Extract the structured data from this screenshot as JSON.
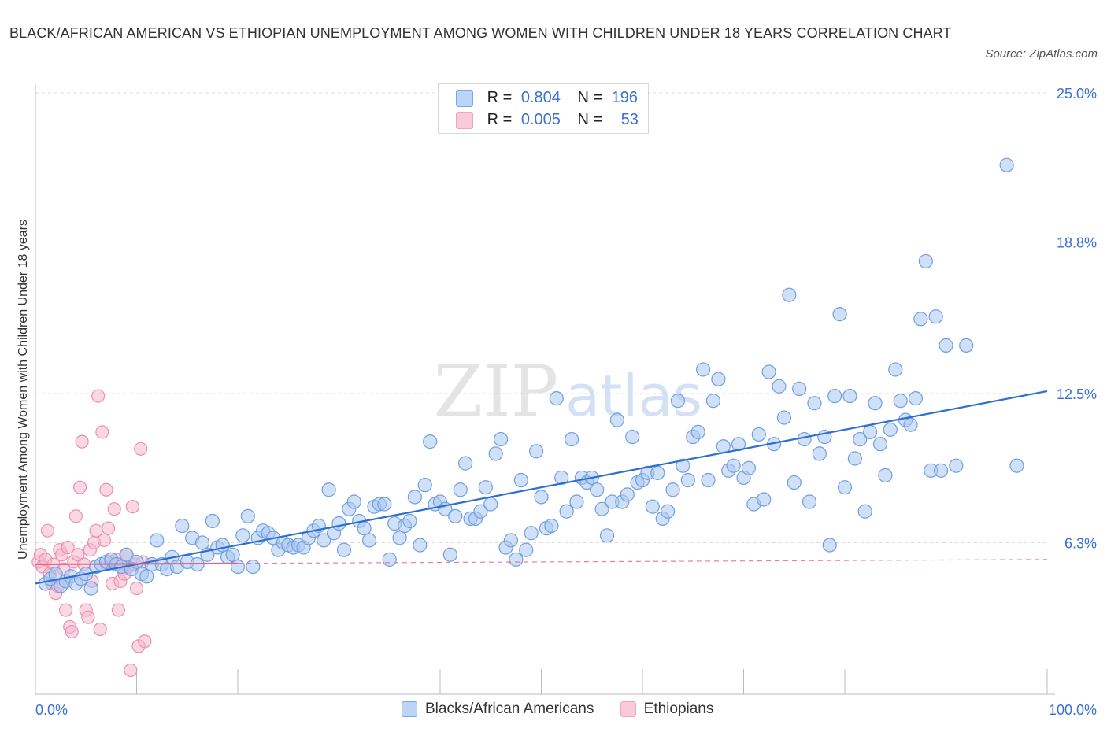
{
  "title": "BLACK/AFRICAN AMERICAN VS ETHIOPIAN UNEMPLOYMENT AMONG WOMEN WITH CHILDREN UNDER 18 YEARS CORRELATION CHART",
  "source": "Source: ZipAtlas.com",
  "watermark": {
    "zip": "ZIP",
    "atlas": "atlas"
  },
  "legend_top": {
    "rows": [
      {
        "r_label": "R =",
        "r_value": "0.804",
        "n_label": "N =",
        "n_value": "196",
        "color": "#a9c6f0"
      },
      {
        "r_label": "R =",
        "r_value": "0.005",
        "n_label": "N =",
        "n_value": "53",
        "color": "#f5b8cc"
      }
    ]
  },
  "chart_data": {
    "type": "scatter",
    "title": "BLACK/AFRICAN AMERICAN VS ETHIOPIAN UNEMPLOYMENT AMONG WOMEN WITH CHILDREN UNDER 18 YEARS CORRELATION CHART",
    "xlabel": "",
    "ylabel": "Unemployment Among Women with Children Under 18 years",
    "xlim": [
      0,
      100
    ],
    "ylim": [
      0,
      25
    ],
    "x_tick_labels": [
      {
        "value": 0,
        "label": "0.0%"
      },
      {
        "value": 100,
        "label": "100.0%"
      }
    ],
    "y_tick_labels": [
      {
        "value": 6.3,
        "label": "6.3%"
      },
      {
        "value": 12.5,
        "label": "12.5%"
      },
      {
        "value": 18.8,
        "label": "18.8%"
      },
      {
        "value": 25.0,
        "label": "25.0%"
      }
    ],
    "grid": true,
    "legend_position": "bottom",
    "series": [
      {
        "name": "Blacks/African Americans",
        "color": "#7aa7e6",
        "trend": {
          "x": [
            0,
            100
          ],
          "y": [
            4.6,
            12.6
          ],
          "color": "#2d6fd0"
        },
        "points": [
          [
            1,
            4.6
          ],
          [
            1.5,
            4.8
          ],
          [
            2,
            5.0
          ],
          [
            2.5,
            4.5
          ],
          [
            3,
            4.7
          ],
          [
            3.5,
            4.9
          ],
          [
            4,
            4.6
          ],
          [
            4.5,
            4.8
          ],
          [
            5,
            5.0
          ],
          [
            5.5,
            4.4
          ],
          [
            6,
            5.3
          ],
          [
            6.5,
            5.4
          ],
          [
            7,
            5.5
          ],
          [
            7.5,
            5.6
          ],
          [
            8,
            5.4
          ],
          [
            8.5,
            5.3
          ],
          [
            9,
            5.8
          ],
          [
            9.5,
            5.2
          ],
          [
            10,
            5.5
          ],
          [
            10.5,
            5.0
          ],
          [
            11,
            4.9
          ],
          [
            11.5,
            5.4
          ],
          [
            12,
            6.4
          ],
          [
            12.5,
            5.4
          ],
          [
            13,
            5.2
          ],
          [
            13.5,
            5.7
          ],
          [
            14,
            5.3
          ],
          [
            14.5,
            7.0
          ],
          [
            15,
            5.5
          ],
          [
            15.5,
            6.5
          ],
          [
            16,
            5.4
          ],
          [
            16.5,
            6.3
          ],
          [
            17,
            5.8
          ],
          [
            17.5,
            7.2
          ],
          [
            18,
            6.1
          ],
          [
            18.5,
            6.2
          ],
          [
            19,
            5.7
          ],
          [
            19.5,
            5.8
          ],
          [
            20,
            5.3
          ],
          [
            20.5,
            6.6
          ],
          [
            21,
            7.4
          ],
          [
            21.5,
            5.3
          ],
          [
            22,
            6.5
          ],
          [
            22.5,
            6.8
          ],
          [
            23,
            6.7
          ],
          [
            23.5,
            6.5
          ],
          [
            24,
            6.0
          ],
          [
            24.5,
            6.3
          ],
          [
            25,
            6.2
          ],
          [
            25.5,
            6.1
          ],
          [
            26,
            6.2
          ],
          [
            26.5,
            6.1
          ],
          [
            27,
            6.5
          ],
          [
            27.5,
            6.8
          ],
          [
            28,
            7.0
          ],
          [
            28.5,
            6.4
          ],
          [
            29,
            8.5
          ],
          [
            29.5,
            6.7
          ],
          [
            30,
            7.1
          ],
          [
            30.5,
            6.0
          ],
          [
            31,
            7.7
          ],
          [
            31.5,
            8.0
          ],
          [
            32,
            7.2
          ],
          [
            32.5,
            6.9
          ],
          [
            33,
            6.4
          ],
          [
            33.5,
            7.8
          ],
          [
            34,
            7.9
          ],
          [
            34.5,
            7.9
          ],
          [
            35,
            5.6
          ],
          [
            35.5,
            7.1
          ],
          [
            36,
            6.5
          ],
          [
            36.5,
            7.0
          ],
          [
            37,
            7.2
          ],
          [
            37.5,
            8.2
          ],
          [
            38,
            6.2
          ],
          [
            38.5,
            8.7
          ],
          [
            39,
            10.5
          ],
          [
            39.5,
            7.9
          ],
          [
            40,
            8.0
          ],
          [
            40.5,
            7.7
          ],
          [
            41,
            5.8
          ],
          [
            41.5,
            7.4
          ],
          [
            42,
            8.5
          ],
          [
            42.5,
            9.6
          ],
          [
            43,
            7.3
          ],
          [
            43.5,
            7.3
          ],
          [
            44,
            7.6
          ],
          [
            44.5,
            8.6
          ],
          [
            45,
            7.9
          ],
          [
            45.5,
            10.0
          ],
          [
            46,
            10.6
          ],
          [
            46.5,
            6.1
          ],
          [
            47,
            6.4
          ],
          [
            47.5,
            5.6
          ],
          [
            48,
            8.9
          ],
          [
            48.5,
            6.0
          ],
          [
            49,
            6.7
          ],
          [
            49.5,
            10.1
          ],
          [
            50,
            8.2
          ],
          [
            50.5,
            6.9
          ],
          [
            51,
            7.0
          ],
          [
            51.5,
            12.3
          ],
          [
            52,
            9.0
          ],
          [
            52.5,
            7.6
          ],
          [
            53,
            10.6
          ],
          [
            53.5,
            8.0
          ],
          [
            54,
            9.0
          ],
          [
            54.5,
            8.8
          ],
          [
            55,
            9.0
          ],
          [
            55.5,
            8.5
          ],
          [
            56,
            7.7
          ],
          [
            56.5,
            6.6
          ],
          [
            57,
            8.0
          ],
          [
            57.5,
            11.4
          ],
          [
            58,
            8.0
          ],
          [
            58.5,
            8.3
          ],
          [
            59,
            10.7
          ],
          [
            59.5,
            8.8
          ],
          [
            60,
            8.9
          ],
          [
            60.5,
            9.2
          ],
          [
            61,
            7.8
          ],
          [
            61.5,
            9.2
          ],
          [
            62,
            7.3
          ],
          [
            62.5,
            7.6
          ],
          [
            63,
            8.5
          ],
          [
            63.5,
            12.2
          ],
          [
            64,
            9.5
          ],
          [
            64.5,
            8.9
          ],
          [
            65,
            10.7
          ],
          [
            65.5,
            10.9
          ],
          [
            66,
            13.5
          ],
          [
            66.5,
            8.9
          ],
          [
            67,
            12.2
          ],
          [
            67.5,
            13.1
          ],
          [
            68,
            10.3
          ],
          [
            68.5,
            9.3
          ],
          [
            69,
            9.5
          ],
          [
            69.5,
            10.4
          ],
          [
            70,
            9.0
          ],
          [
            70.5,
            9.4
          ],
          [
            71,
            7.9
          ],
          [
            71.5,
            10.8
          ],
          [
            72,
            8.1
          ],
          [
            72.5,
            13.4
          ],
          [
            73,
            10.4
          ],
          [
            73.5,
            12.8
          ],
          [
            74,
            11.5
          ],
          [
            74.5,
            16.6
          ],
          [
            75,
            8.8
          ],
          [
            75.5,
            12.7
          ],
          [
            76,
            10.6
          ],
          [
            76.5,
            8.0
          ],
          [
            77,
            12.1
          ],
          [
            77.5,
            10.0
          ],
          [
            78,
            10.7
          ],
          [
            78.5,
            6.2
          ],
          [
            79,
            12.4
          ],
          [
            79.5,
            15.8
          ],
          [
            80,
            8.6
          ],
          [
            80.5,
            12.4
          ],
          [
            81,
            9.8
          ],
          [
            81.5,
            10.6
          ],
          [
            82,
            7.6
          ],
          [
            82.5,
            10.9
          ],
          [
            83,
            12.1
          ],
          [
            83.5,
            10.4
          ],
          [
            84,
            9.1
          ],
          [
            84.5,
            11.0
          ],
          [
            85,
            13.5
          ],
          [
            85.5,
            12.2
          ],
          [
            86,
            11.4
          ],
          [
            86.5,
            11.2
          ],
          [
            87,
            12.3
          ],
          [
            87.5,
            15.6
          ],
          [
            88,
            18.0
          ],
          [
            88.5,
            9.3
          ],
          [
            89,
            15.7
          ],
          [
            89.5,
            9.3
          ],
          [
            90,
            14.5
          ],
          [
            91,
            9.5
          ],
          [
            92,
            14.5
          ],
          [
            96,
            22.0
          ],
          [
            97,
            9.5
          ]
        ]
      },
      {
        "name": "Ethiopians",
        "color": "#f2a4bd",
        "trend": {
          "x": [
            0,
            100
          ],
          "y": [
            5.4,
            5.6
          ],
          "color": "#e0608a"
        },
        "points": [
          [
            0.3,
            5.5
          ],
          [
            0.5,
            5.8
          ],
          [
            0.7,
            5.3
          ],
          [
            1,
            5.6
          ],
          [
            1.2,
            6.8
          ],
          [
            1.4,
            5.0
          ],
          [
            1.6,
            4.6
          ],
          [
            1.8,
            5.4
          ],
          [
            2,
            4.2
          ],
          [
            2.2,
            4.5
          ],
          [
            2.4,
            6.0
          ],
          [
            2.6,
            5.8
          ],
          [
            2.8,
            5.2
          ],
          [
            3,
            3.5
          ],
          [
            3.2,
            6.1
          ],
          [
            3.4,
            2.8
          ],
          [
            3.6,
            2.6
          ],
          [
            3.8,
            5.5
          ],
          [
            4,
            7.4
          ],
          [
            4.2,
            5.8
          ],
          [
            4.4,
            8.6
          ],
          [
            4.6,
            10.5
          ],
          [
            4.8,
            5.4
          ],
          [
            5,
            3.5
          ],
          [
            5.2,
            3.2
          ],
          [
            5.4,
            6.0
          ],
          [
            5.6,
            4.7
          ],
          [
            5.8,
            6.3
          ],
          [
            6,
            6.8
          ],
          [
            6.2,
            12.4
          ],
          [
            6.4,
            2.7
          ],
          [
            6.6,
            10.9
          ],
          [
            6.8,
            6.4
          ],
          [
            7,
            8.5
          ],
          [
            7.2,
            6.9
          ],
          [
            7.4,
            5.5
          ],
          [
            7.6,
            4.6
          ],
          [
            7.8,
            7.7
          ],
          [
            8,
            5.6
          ],
          [
            8.2,
            3.5
          ],
          [
            8.4,
            4.7
          ],
          [
            8.6,
            5.2
          ],
          [
            8.8,
            5.0
          ],
          [
            9,
            5.8
          ],
          [
            9.2,
            5.3
          ],
          [
            9.4,
            1.0
          ],
          [
            9.6,
            7.8
          ],
          [
            9.8,
            5.4
          ],
          [
            10,
            4.4
          ],
          [
            10.2,
            2.0
          ],
          [
            10.4,
            10.2
          ],
          [
            10.6,
            5.5
          ],
          [
            10.8,
            2.2
          ]
        ]
      }
    ]
  }
}
